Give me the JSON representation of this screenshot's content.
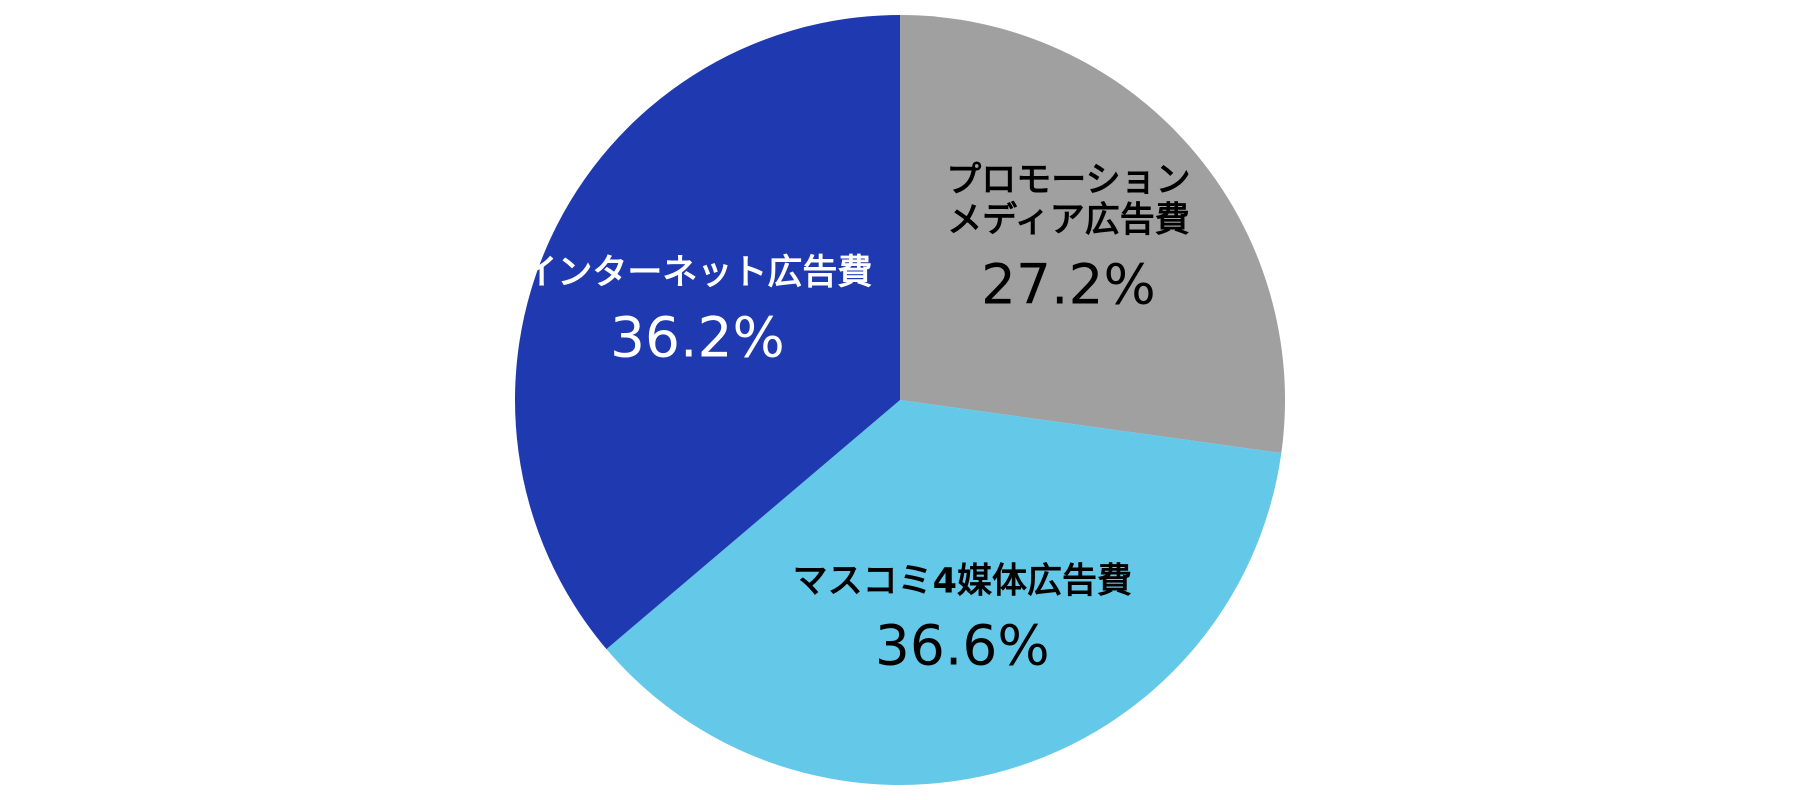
{
  "chart_data": {
    "type": "pie",
    "categories": [
      "プロモーション\nメディア広告費",
      "マスコミ4媒体広告費",
      "インターネット広告費"
    ],
    "values": [
      27.2,
      36.6,
      36.2
    ],
    "value_labels": [
      "27.2%",
      "36.6%",
      "36.2%"
    ],
    "colors": [
      "#a0a0a0",
      "#64c8e8",
      "#1f3ab0"
    ]
  }
}
